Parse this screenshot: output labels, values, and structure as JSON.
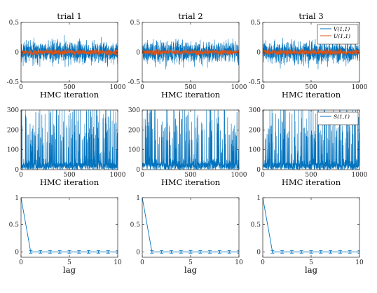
{
  "colors": {
    "blue": "#0072BD",
    "orange": "#D95319",
    "axis": "#262626"
  },
  "chart_data": [
    {
      "type": "line",
      "row": 0,
      "col": 0,
      "title": "trial 1",
      "xlabel": "HMC iteration",
      "xlim": [
        0,
        1000
      ],
      "ylim": [
        -0.5,
        0.5
      ],
      "xticks": [
        "0",
        "500",
        "1000"
      ],
      "yticks": [
        "-0.5",
        "0",
        "0.5"
      ],
      "series": [
        {
          "name": "V(1,1)",
          "color": "#0072BD",
          "mean": 0,
          "amplitude": 0.12
        },
        {
          "name": "U(1,1)",
          "color": "#D95319",
          "mean": 0,
          "amplitude": 0.04
        }
      ],
      "legend": null
    },
    {
      "type": "line",
      "row": 0,
      "col": 1,
      "title": "trial 2",
      "xlabel": "HMC iteration",
      "xlim": [
        0,
        1000
      ],
      "ylim": [
        -0.5,
        0.5
      ],
      "xticks": [
        "0",
        "500",
        "1000"
      ],
      "yticks": [
        "-0.5",
        "0",
        "0.5"
      ],
      "series": [
        {
          "name": "V(1,1)",
          "color": "#0072BD",
          "mean": 0,
          "amplitude": 0.12
        },
        {
          "name": "U(1,1)",
          "color": "#D95319",
          "mean": 0,
          "amplitude": 0.04
        }
      ],
      "legend": null
    },
    {
      "type": "line",
      "row": 0,
      "col": 2,
      "title": "trial 3",
      "xlabel": "HMC iteration",
      "xlim": [
        0,
        1000
      ],
      "ylim": [
        -0.5,
        0.5
      ],
      "xticks": [
        "0",
        "500",
        "1000"
      ],
      "yticks": [
        "-0.5",
        "0",
        "0.5"
      ],
      "series": [
        {
          "name": "V(1,1)",
          "color": "#0072BD",
          "mean": 0,
          "amplitude": 0.12
        },
        {
          "name": "U(1,1)",
          "color": "#D95319",
          "mean": 0,
          "amplitude": 0.04
        }
      ],
      "legend": {
        "position": "top-right",
        "entries": [
          "V(1,1)",
          "U(1,1)"
        ]
      }
    },
    {
      "type": "line",
      "row": 1,
      "col": 0,
      "title": "",
      "xlabel": "HMC iteration",
      "xlim": [
        0,
        1000
      ],
      "ylim": [
        0,
        300
      ],
      "xticks": [
        "0",
        "500",
        "1000"
      ],
      "yticks": [
        "0",
        "100",
        "200",
        "300"
      ],
      "series": [
        {
          "name": "S(1,1)",
          "color": "#0072BD"
        }
      ],
      "legend": null
    },
    {
      "type": "line",
      "row": 1,
      "col": 1,
      "title": "",
      "xlabel": "HMC iteration",
      "xlim": [
        0,
        1000
      ],
      "ylim": [
        0,
        300
      ],
      "xticks": [
        "0",
        "500",
        "1000"
      ],
      "yticks": [
        "0",
        "100",
        "200",
        "300"
      ],
      "series": [
        {
          "name": "S(1,1)",
          "color": "#0072BD"
        }
      ],
      "legend": null
    },
    {
      "type": "line",
      "row": 1,
      "col": 2,
      "title": "",
      "xlabel": "HMC iteration",
      "xlim": [
        0,
        1000
      ],
      "ylim": [
        0,
        300
      ],
      "xticks": [
        "0",
        "500",
        "1000"
      ],
      "yticks": [
        "0",
        "100",
        "200",
        "300"
      ],
      "series": [
        {
          "name": "S(1,1)",
          "color": "#0072BD"
        }
      ],
      "legend": {
        "position": "top-right",
        "entries": [
          "S(1,1)"
        ]
      }
    },
    {
      "type": "line",
      "row": 2,
      "col": 0,
      "title": "",
      "xlabel": "lag",
      "xlim": [
        0,
        10
      ],
      "ylim": [
        -0.1,
        1
      ],
      "xticks": [
        "0",
        "5",
        "10"
      ],
      "yticks": [
        "0",
        "0.5",
        "1"
      ],
      "x": [
        0,
        1,
        2,
        3,
        4,
        5,
        6,
        7,
        8,
        9,
        10
      ],
      "y": [
        1,
        0,
        0,
        0,
        0,
        0,
        0,
        0,
        0,
        0,
        0
      ],
      "error": 0.025
    },
    {
      "type": "line",
      "row": 2,
      "col": 1,
      "title": "",
      "xlabel": "lag",
      "xlim": [
        0,
        10
      ],
      "ylim": [
        -0.1,
        1
      ],
      "xticks": [
        "0",
        "5",
        "10"
      ],
      "yticks": [
        "0",
        "0.5",
        "1"
      ],
      "x": [
        0,
        1,
        2,
        3,
        4,
        5,
        6,
        7,
        8,
        9,
        10
      ],
      "y": [
        1,
        0,
        0,
        0,
        0,
        0,
        0,
        0,
        0,
        0,
        0
      ],
      "error": 0.025
    },
    {
      "type": "line",
      "row": 2,
      "col": 2,
      "title": "",
      "xlabel": "lag",
      "xlim": [
        0,
        10
      ],
      "ylim": [
        -0.1,
        1
      ],
      "xticks": [
        "0",
        "5",
        "10"
      ],
      "yticks": [
        "0",
        "0.5",
        "1"
      ],
      "x": [
        0,
        1,
        2,
        3,
        4,
        5,
        6,
        7,
        8,
        9,
        10
      ],
      "y": [
        1,
        0,
        0,
        0,
        0,
        0,
        0,
        0,
        0,
        0,
        0
      ],
      "error": 0.025
    }
  ]
}
